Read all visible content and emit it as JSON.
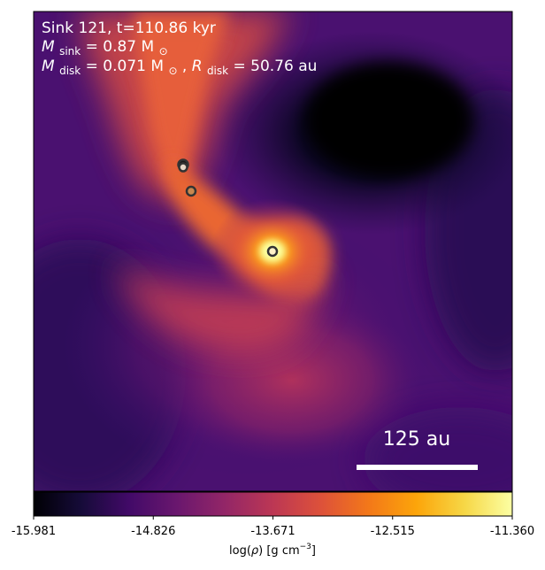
{
  "annotations": {
    "line1": "Sink 121, t=110.86 kyr",
    "line2_m": "M",
    "line2_sub": "sink",
    "line2_rest": " = 0.87 M",
    "line2_sun": "⊙",
    "line3_m": "M",
    "line3_sub": "disk",
    "line3_mid": " = 0.071 M",
    "line3_sun": "⊙",
    "line3_r_sep": ", ",
    "line3_r": "R",
    "line3_r_sub": "disk",
    "line3_rest": " = 50.76 au"
  },
  "scale_bar": {
    "label": "125 au",
    "length_au": 125
  },
  "colorbar": {
    "ticks": [
      "-15.981",
      "-14.826",
      "-13.671",
      "-12.515",
      "-11.360"
    ],
    "min": -15.981,
    "max": -11.36,
    "label_prefix": "log(",
    "label_rho": "ρ",
    "label_mid": ") [g cm",
    "label_exp": "−3",
    "label_suffix": "]",
    "colormap": "inferno"
  },
  "sinks": [
    {
      "name": "sink-a",
      "fill": "#1a1a1a"
    },
    {
      "name": "sink-b",
      "fill": "#e6d8c8"
    },
    {
      "name": "sink-c",
      "fill": "#c9884f"
    },
    {
      "name": "sink-121",
      "fill": "#fff2c8"
    }
  ],
  "colors": {
    "background_low": "#000004",
    "disk_high": "#fcffa4",
    "filament": "#e85e38",
    "envelope": "#3b0f70"
  }
}
